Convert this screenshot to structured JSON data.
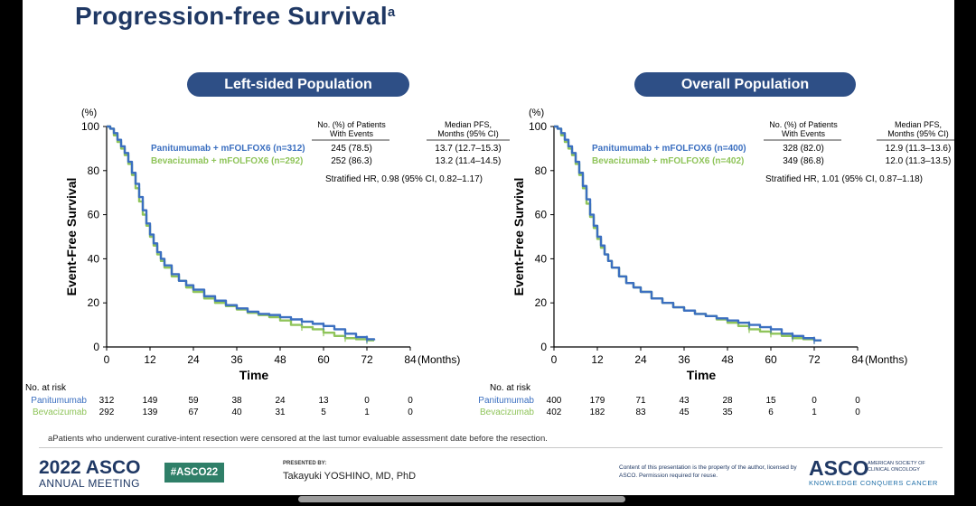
{
  "slide": {
    "title": "Progression-free Survival",
    "title_sup": "a",
    "footnote": "aPatients who underwent curative-intent resection were censored at the last tumor evaluable assessment date before the resection."
  },
  "footer": {
    "year_label": "2022",
    "asco_label": "ASCO",
    "meeting_label": "ANNUAL MEETING",
    "hashtag": "#ASCO22",
    "presented_by": "PRESENTED BY:",
    "presenter": "Takayuki YOSHINO, MD, PhD",
    "copyright": "Content of this presentation is the property of the author, licensed by ASCO. Permission required for reuse.",
    "asco_logo": "ASCO",
    "asco_org": "AMERICAN SOCIETY OF CLINICAL ONCOLOGY",
    "asco_tagline": "KNOWLEDGE CONQUERS CANCER"
  },
  "colors": {
    "title": "#1f3864",
    "pill": "#2e4f86",
    "panitumumab": "#3b6fc0",
    "bevacizumab": "#8fc45a",
    "hashtag_bg": "#2f7f68"
  },
  "chart_data": [
    {
      "type": "line",
      "panel_title": "Left-sided Population",
      "ylabel": "Event-Free Survival",
      "yunit": "(%)",
      "xlabel": "Time",
      "xunit": "(Months)",
      "xticks": [
        0,
        12,
        24,
        36,
        48,
        60,
        72,
        84
      ],
      "yticks": [
        0,
        20,
        40,
        60,
        80,
        100
      ],
      "xlim": [
        0,
        84
      ],
      "ylim": [
        0,
        100
      ],
      "table_headers": [
        "No. (%) of Patients With Events",
        "Median PFS, Months (95% CI)"
      ],
      "series": [
        {
          "name": "Panitumumab + mFOLFOX6 (n=312)",
          "risk_label": "Panitumumab",
          "color": "#3b6fc0",
          "events": "245 (78.5)",
          "median": "13.7 (12.7–15.3)",
          "x": [
            0,
            1,
            2,
            3,
            4,
            5,
            6,
            7,
            8,
            9,
            10,
            11,
            12,
            13,
            14,
            15,
            16,
            18,
            20,
            22,
            24,
            27,
            30,
            33,
            36,
            39,
            42,
            45,
            48,
            51,
            54,
            57,
            60,
            63,
            66,
            69,
            72,
            74
          ],
          "y": [
            100,
            99,
            97,
            94,
            91,
            88,
            84,
            79,
            74,
            68,
            62,
            56,
            51,
            47,
            43,
            40,
            37,
            33,
            30,
            28,
            26,
            23,
            21,
            19,
            17.5,
            16,
            15,
            14.5,
            13.5,
            12.5,
            11.5,
            10.5,
            9.5,
            8,
            6,
            4.5,
            3.5,
            3
          ]
        },
        {
          "name": "Bevacizumab + mFOLFOX6 (n=292)",
          "risk_label": "Bevacizumab",
          "color": "#8fc45a",
          "events": "252 (86.3)",
          "median": "13.2 (11.4–14.5)",
          "x": [
            0,
            1,
            2,
            3,
            4,
            5,
            6,
            7,
            8,
            9,
            10,
            11,
            12,
            13,
            14,
            15,
            16,
            18,
            20,
            22,
            24,
            27,
            30,
            33,
            36,
            39,
            42,
            45,
            48,
            51,
            54,
            57,
            60,
            63,
            66,
            69,
            72,
            74
          ],
          "y": [
            100,
            99,
            96,
            93,
            90,
            87,
            83,
            78,
            72,
            66,
            60,
            55,
            50,
            46,
            42,
            39,
            36,
            32,
            30,
            27,
            25,
            22,
            20,
            18.5,
            17,
            15.5,
            14.5,
            13.5,
            12,
            10,
            9,
            8,
            6.5,
            5,
            4,
            3.5,
            3,
            3
          ]
        }
      ],
      "hr_text": "Stratified HR, 0.98 (95% CI, 0.82–1.17)",
      "at_risk_label": "No. at risk",
      "at_risk": [
        {
          "label": "Panitumumab",
          "values": [
            "312",
            "149",
            "59",
            "38",
            "24",
            "13",
            "0",
            "0"
          ]
        },
        {
          "label": "Bevacizumab",
          "values": [
            "292",
            "139",
            "67",
            "40",
            "31",
            "5",
            "1",
            "0"
          ]
        }
      ]
    },
    {
      "type": "line",
      "panel_title": "Overall Population",
      "ylabel": "Event-Free Survival",
      "yunit": "(%)",
      "xlabel": "Time",
      "xunit": "(Months)",
      "xticks": [
        0,
        12,
        24,
        36,
        48,
        60,
        72,
        84
      ],
      "yticks": [
        0,
        20,
        40,
        60,
        80,
        100
      ],
      "xlim": [
        0,
        84
      ],
      "ylim": [
        0,
        100
      ],
      "table_headers": [
        "No. (%) of Patients With Events",
        "Median PFS, Months (95% CI)"
      ],
      "series": [
        {
          "name": "Panitumumab + mFOLFOX6 (n=400)",
          "risk_label": "Panitumumab",
          "color": "#3b6fc0",
          "events": "328 (82.0)",
          "median": "12.9 (11.3–13.6)",
          "x": [
            0,
            1,
            2,
            3,
            4,
            5,
            6,
            7,
            8,
            9,
            10,
            11,
            12,
            13,
            14,
            15,
            16,
            18,
            20,
            22,
            24,
            27,
            30,
            33,
            36,
            39,
            42,
            45,
            48,
            51,
            54,
            57,
            60,
            63,
            66,
            69,
            72,
            74
          ],
          "y": [
            100,
            99,
            97,
            94,
            91,
            88,
            84,
            79,
            73,
            67,
            60,
            55,
            50,
            46,
            42,
            39,
            36,
            32,
            29,
            27,
            25,
            22,
            20,
            18,
            16.5,
            15,
            14,
            13,
            12,
            11,
            10,
            9,
            8,
            6,
            5,
            4,
            3,
            3
          ]
        },
        {
          "name": "Bevacizumab + mFOLFOX6 (n=402)",
          "risk_label": "Bevacizumab",
          "color": "#8fc45a",
          "events": "349 (86.8)",
          "median": "12.0 (11.3–13.5)",
          "x": [
            0,
            1,
            2,
            3,
            4,
            5,
            6,
            7,
            8,
            9,
            10,
            11,
            12,
            13,
            14,
            15,
            16,
            18,
            20,
            22,
            24,
            27,
            30,
            33,
            36,
            39,
            42,
            45,
            48,
            51,
            54,
            57,
            60,
            63,
            66,
            69,
            72,
            74
          ],
          "y": [
            100,
            99,
            96,
            93,
            90,
            87,
            83,
            78,
            72,
            65,
            59,
            54,
            49,
            45,
            42,
            39,
            36,
            32,
            29,
            27,
            25,
            22,
            20,
            18,
            16.5,
            15,
            14,
            12.5,
            11,
            9.5,
            8,
            7,
            6,
            5,
            4,
            3.5,
            3,
            3
          ]
        }
      ],
      "hr_text": "Stratified HR, 1.01 (95% CI, 0.87–1.18)",
      "at_risk_label": "No. at risk",
      "at_risk": [
        {
          "label": "Panitumumab",
          "values": [
            "400",
            "179",
            "71",
            "43",
            "28",
            "15",
            "0",
            "0"
          ]
        },
        {
          "label": "Bevacizumab",
          "values": [
            "402",
            "182",
            "83",
            "45",
            "35",
            "6",
            "1",
            "0"
          ]
        }
      ]
    }
  ]
}
